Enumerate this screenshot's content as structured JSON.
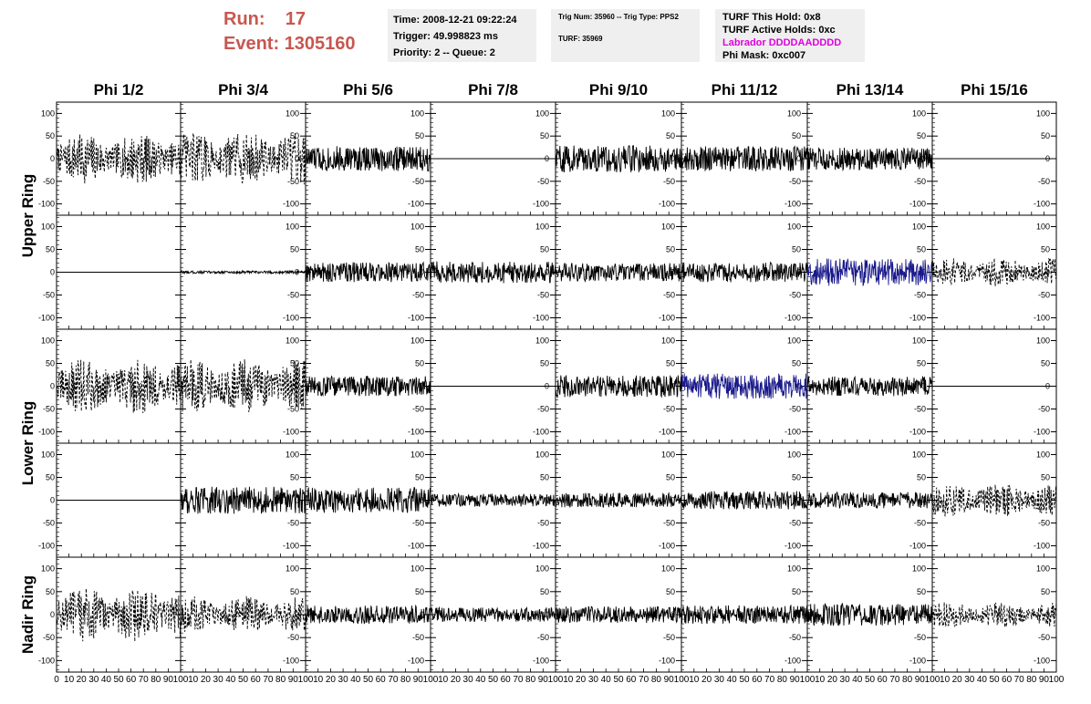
{
  "header": {
    "run_label": "Run:",
    "run_value": "17",
    "event_label": "Event:",
    "event_value": "1305160"
  },
  "info_time": {
    "time": "Time: 2008-12-21 09:22:24",
    "trigger": "Trigger: 49.998823 ms",
    "priority": "Priority: 2 -- Queue: 2"
  },
  "info_trig": {
    "trig": "Trig Num: 35960 -- Trig Type: PPS2",
    "turf": "TURF: 35969"
  },
  "info_turf": {
    "hold": "TURF This Hold: 0x8",
    "active": "TURF Active Holds: 0xc",
    "labrador": "Labrador DDDDAADDDD",
    "mask": "Phi Mask: 0xc007"
  },
  "colors": {
    "labrador": "#e000e0",
    "run_text": "#c8574f",
    "trace": "#000000",
    "highlight_trace": "#1a1a8c",
    "panel_bg": "#efefef"
  },
  "chart_data": {
    "type": "line",
    "columns": [
      "Phi 1/2",
      "Phi 3/4",
      "Phi 5/6",
      "Phi 7/8",
      "Phi 9/10",
      "Phi 11/12",
      "Phi 13/14",
      "Phi 15/16"
    ],
    "row_labels": [
      "Upper Ring",
      "Lower Ring",
      "Nadir Ring"
    ],
    "xlim": [
      0,
      100
    ],
    "ylim": [
      -125,
      125
    ],
    "yticks": [
      -100,
      -50,
      0,
      50,
      100
    ],
    "xticks": [
      0,
      10,
      20,
      30,
      40,
      50,
      60,
      70,
      80,
      90,
      100
    ],
    "panels": [
      [
        {
          "style": "dashed",
          "amp": 55,
          "color": "black"
        },
        {
          "style": "dashed",
          "amp": 60,
          "color": "black"
        },
        {
          "style": "solid",
          "amp": 28,
          "color": "black"
        },
        {
          "style": "flat",
          "amp": 0,
          "color": "black"
        },
        {
          "style": "solid",
          "amp": 30,
          "color": "black"
        },
        {
          "style": "solid",
          "amp": 28,
          "color": "black"
        },
        {
          "style": "solid",
          "amp": 25,
          "color": "black"
        },
        {
          "style": "flat",
          "amp": 0,
          "color": "black"
        }
      ],
      [
        {
          "style": "flat",
          "amp": 0,
          "color": "black"
        },
        {
          "style": "solid",
          "amp": 3,
          "color": "black"
        },
        {
          "style": "solid",
          "amp": 22,
          "color": "black"
        },
        {
          "style": "solid",
          "amp": 24,
          "color": "black"
        },
        {
          "style": "solid",
          "amp": 20,
          "color": "black"
        },
        {
          "style": "solid",
          "amp": 22,
          "color": "black"
        },
        {
          "style": "solid",
          "amp": 30,
          "color": "blue"
        },
        {
          "style": "dashed",
          "amp": 32,
          "color": "black"
        }
      ],
      [
        {
          "style": "dashed",
          "amp": 60,
          "color": "black"
        },
        {
          "style": "dashed",
          "amp": 60,
          "color": "black"
        },
        {
          "style": "solid",
          "amp": 22,
          "color": "black"
        },
        {
          "style": "flat",
          "amp": 0,
          "color": "black"
        },
        {
          "style": "solid",
          "amp": 24,
          "color": "black"
        },
        {
          "style": "solid",
          "amp": 28,
          "color": "blue"
        },
        {
          "style": "solid",
          "amp": 22,
          "color": "black"
        },
        {
          "style": "flat",
          "amp": 0,
          "color": "black"
        }
      ],
      [
        {
          "style": "flat",
          "amp": 0,
          "color": "black"
        },
        {
          "style": "solid",
          "amp": 30,
          "color": "black"
        },
        {
          "style": "solid",
          "amp": 28,
          "color": "black"
        },
        {
          "style": "solid",
          "amp": 14,
          "color": "black"
        },
        {
          "style": "solid",
          "amp": 16,
          "color": "black"
        },
        {
          "style": "solid",
          "amp": 20,
          "color": "black"
        },
        {
          "style": "solid",
          "amp": 18,
          "color": "black"
        },
        {
          "style": "dashed",
          "amp": 36,
          "color": "black"
        }
      ],
      [
        {
          "style": "dashed",
          "amp": 60,
          "color": "black"
        },
        {
          "style": "dashed",
          "amp": 40,
          "color": "black"
        },
        {
          "style": "solid",
          "amp": 20,
          "color": "black"
        },
        {
          "style": "solid",
          "amp": 16,
          "color": "black"
        },
        {
          "style": "solid",
          "amp": 18,
          "color": "black"
        },
        {
          "style": "solid",
          "amp": 20,
          "color": "black"
        },
        {
          "style": "solid",
          "amp": 24,
          "color": "black"
        },
        {
          "style": "dashed",
          "amp": 28,
          "color": "black"
        }
      ]
    ]
  }
}
